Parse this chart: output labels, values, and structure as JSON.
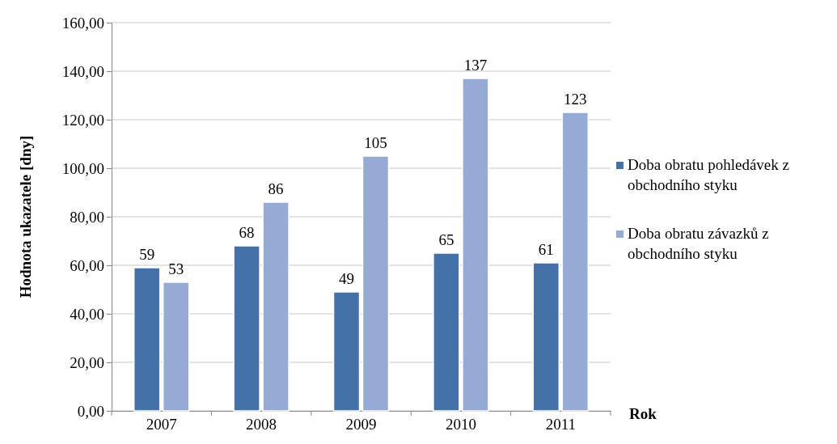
{
  "chart_data": {
    "type": "bar",
    "xlabel": "Rok",
    "ylabel": "Hodnota ukazatele [dny]",
    "categories": [
      "2007",
      "2008",
      "2009",
      "2010",
      "2011"
    ],
    "series": [
      {
        "name": "Doba obratu pohledávek z obchodního styku",
        "color": "#4472a8",
        "values": [
          59,
          68,
          49,
          65,
          61
        ]
      },
      {
        "name": "Doba obratu závazků z obchodního styku",
        "color": "#95abd5",
        "values": [
          53,
          86,
          105,
          137,
          123
        ]
      }
    ],
    "ylim": [
      0,
      160
    ],
    "yticks": [
      {
        "value": 0,
        "label": "0,00"
      },
      {
        "value": 20,
        "label": "20,00"
      },
      {
        "value": 40,
        "label": "40,00"
      },
      {
        "value": 60,
        "label": "60,00"
      },
      {
        "value": 80,
        "label": "80,00"
      },
      {
        "value": 100,
        "label": "100,00"
      },
      {
        "value": 120,
        "label": "120,00"
      },
      {
        "value": 140,
        "label": "140,00"
      },
      {
        "value": 160,
        "label": "160,00"
      }
    ],
    "grid": "y",
    "legend": "right",
    "data_labels": true
  }
}
